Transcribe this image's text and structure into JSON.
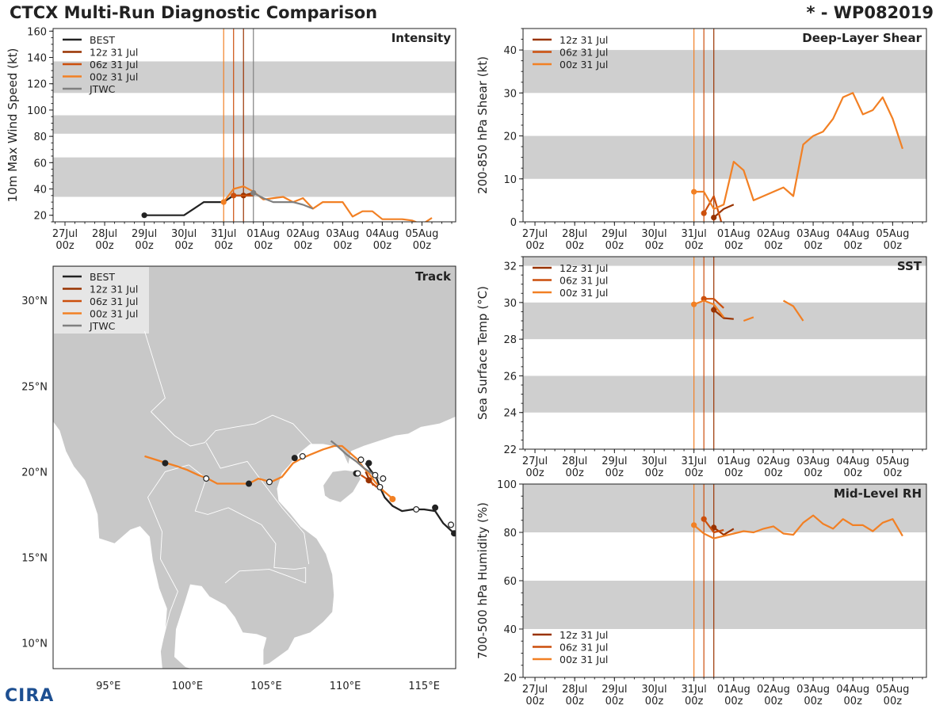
{
  "header": {
    "title_left": "CTCX Multi-Run Diagnostic Comparison",
    "title_right": "* - WP082019"
  },
  "logo": {
    "text": "CIRA"
  },
  "colors": {
    "best": "#222222",
    "run12": "#993300",
    "run06": "#cc4f0c",
    "run00": "#f28024",
    "jtwc": "#808080",
    "band": "#cfcfcf",
    "land": "#c8c8c8"
  },
  "time_ticks": [
    "27Jul\n00z",
    "28Jul\n00z",
    "29Jul\n00z",
    "30Jul\n00z",
    "31Jul\n00z",
    "01Aug\n00z",
    "02Aug\n00z",
    "03Aug\n00z",
    "04Aug\n00z",
    "05Aug\n00z"
  ],
  "chart_data": [
    {
      "id": "intensity",
      "type": "line",
      "title": "Intensity",
      "ylabel": "10m Max Wind Speed (kt)",
      "xlabel": "",
      "ylim": [
        15,
        162
      ],
      "yticks": [
        20,
        40,
        60,
        80,
        100,
        120,
        140,
        160
      ],
      "bands": [
        [
          34,
          64
        ],
        [
          82,
          96
        ],
        [
          113,
          137
        ]
      ],
      "x_unit": "days since 27Jul 00z",
      "xlim": [
        -0.3,
        9.85
      ],
      "run_lines": [
        {
          "x": 4.0,
          "series": "run00"
        },
        {
          "x": 4.25,
          "series": "run06"
        },
        {
          "x": 4.5,
          "series": "run12"
        },
        {
          "x": 4.75,
          "series": "jtwc"
        }
      ],
      "legend": [
        "BEST",
        "12z 31 Jul",
        "06z 31 Jul",
        "00z 31 Jul",
        "JTWC"
      ],
      "series": [
        {
          "name": "BEST",
          "key": "best",
          "x": [
            2.0,
            2.25,
            2.5,
            2.75,
            3.0,
            3.25,
            3.5,
            3.75,
            4.0,
            4.25,
            4.5,
            4.75
          ],
          "y": [
            20,
            20,
            20,
            20,
            20,
            25,
            30,
            30,
            30,
            35,
            35,
            35
          ]
        },
        {
          "name": "12z 31 Jul",
          "key": "run12",
          "x": [
            4.5,
            4.75
          ],
          "y": [
            35,
            37
          ]
        },
        {
          "name": "06z 31 Jul",
          "key": "run06",
          "x": [
            4.25,
            4.5,
            4.75
          ],
          "y": [
            35,
            35,
            35
          ]
        },
        {
          "name": "00z 31 Jul",
          "key": "run00",
          "x": [
            4.0,
            4.25,
            4.5,
            4.75,
            5.0,
            5.25,
            5.5,
            5.75,
            6.0,
            6.25,
            6.5,
            6.75,
            7.0,
            7.25,
            7.5,
            7.75,
            8.0,
            8.25,
            8.5,
            8.75,
            9.0,
            9.25
          ],
          "y": [
            30,
            40,
            42,
            38,
            32,
            33,
            34,
            30,
            33,
            25,
            30,
            30,
            30,
            19,
            23,
            23,
            17,
            17,
            17,
            16,
            13,
            18
          ]
        },
        {
          "name": "JTWC",
          "key": "jtwc",
          "x": [
            4.75,
            5.0,
            5.25,
            5.5,
            5.75,
            6.0,
            6.25
          ],
          "y": [
            37,
            33,
            30,
            30,
            30,
            28,
            25
          ]
        }
      ]
    },
    {
      "id": "shear",
      "type": "line",
      "title": "Deep-Layer Shear",
      "ylabel": "200-850 hPa Shear (kt)",
      "xlabel": "",
      "ylim": [
        0,
        45
      ],
      "yticks": [
        0,
        10,
        20,
        30,
        40
      ],
      "bands": [
        [
          10,
          20
        ],
        [
          30,
          40
        ]
      ],
      "xlim": [
        -0.3,
        9.85
      ],
      "run_lines": [
        {
          "x": 4.0,
          "series": "run00"
        },
        {
          "x": 4.25,
          "series": "run06"
        },
        {
          "x": 4.5,
          "series": "run12"
        }
      ],
      "legend": [
        "12z 31 Jul",
        "06z 31 Jul",
        "00z 31 Jul"
      ],
      "series": [
        {
          "name": "12z 31 Jul",
          "key": "run12",
          "x": [
            4.5,
            4.75,
            5.0
          ],
          "y": [
            1,
            3,
            4
          ]
        },
        {
          "name": "06z 31 Jul",
          "key": "run06",
          "x": [
            4.25,
            4.5,
            4.75
          ],
          "y": [
            2,
            6,
            -2
          ]
        },
        {
          "name": "00z 31 Jul",
          "key": "run00",
          "x": [
            4.0,
            4.25,
            4.5,
            4.75,
            5.0,
            5.25,
            5.5,
            6.25,
            6.5,
            6.75,
            7.0,
            7.25,
            7.5,
            7.75,
            8.0,
            8.25,
            8.5,
            8.75,
            9.0,
            9.25
          ],
          "y": [
            7,
            7,
            3,
            4,
            14,
            12,
            5,
            8,
            6,
            18,
            20,
            21,
            24,
            29,
            30,
            25,
            26,
            29,
            24,
            17
          ]
        }
      ]
    },
    {
      "id": "sst",
      "type": "line",
      "title": "SST",
      "ylabel": "Sea Surface Temp (°C)",
      "xlabel": "",
      "ylim": [
        22,
        32.5
      ],
      "yticks": [
        22,
        24,
        26,
        28,
        30,
        32
      ],
      "bands": [
        [
          24,
          26
        ],
        [
          28,
          30
        ],
        [
          32,
          33
        ]
      ],
      "xlim": [
        -0.3,
        9.85
      ],
      "run_lines": [
        {
          "x": 4.0,
          "series": "run00"
        },
        {
          "x": 4.25,
          "series": "run06"
        },
        {
          "x": 4.5,
          "series": "run12"
        }
      ],
      "legend": [
        "12z 31 Jul",
        "06z 31 Jul",
        "00z 31 Jul"
      ],
      "series": [
        {
          "name": "12z 31 Jul",
          "key": "run12",
          "x": [
            4.5,
            4.75,
            5.0
          ],
          "y": [
            29.6,
            29.15,
            29.1
          ]
        },
        {
          "name": "06z 31 Jul",
          "key": "run06",
          "x": [
            4.25,
            4.5,
            4.75
          ],
          "y": [
            30.2,
            30.2,
            29.7
          ]
        },
        {
          "name": "00z 31 Jul",
          "key": "run00",
          "x": [
            4.0,
            4.25,
            4.5,
            4.75
          ],
          "y": [
            29.9,
            30.1,
            29.9,
            29.2
          ],
          "segments": [
            {
              "x": [
                5.25,
                5.5
              ],
              "y": [
                29.0,
                29.2
              ]
            },
            {
              "x": [
                6.25,
                6.5,
                6.75
              ],
              "y": [
                30.1,
                29.8,
                29.0
              ]
            }
          ]
        }
      ]
    },
    {
      "id": "rh",
      "type": "line",
      "title": "Mid-Level RH",
      "ylabel": "700-500 hPa Humidity (%)",
      "xlabel": "",
      "ylim": [
        20,
        100
      ],
      "yticks": [
        20,
        40,
        60,
        80,
        100
      ],
      "bands": [
        [
          40,
          60
        ],
        [
          80,
          100
        ]
      ],
      "xlim": [
        -0.3,
        9.85
      ],
      "run_lines": [
        {
          "x": 4.0,
          "series": "run00"
        },
        {
          "x": 4.25,
          "series": "run06"
        },
        {
          "x": 4.5,
          "series": "run12"
        }
      ],
      "legend": [
        "12z 31 Jul",
        "06z 31 Jul",
        "00z 31 Jul"
      ],
      "series": [
        {
          "name": "12z 31 Jul",
          "key": "run12",
          "x": [
            4.5,
            4.75,
            5.0
          ],
          "y": [
            82,
            79,
            81.5
          ]
        },
        {
          "name": "06z 31 Jul",
          "key": "run06",
          "x": [
            4.25,
            4.5,
            4.75
          ],
          "y": [
            85.5,
            80,
            81
          ]
        },
        {
          "name": "00z 31 Jul",
          "key": "run00",
          "x": [
            4.0,
            4.25,
            4.5,
            4.75,
            5.0,
            5.25,
            5.5,
            5.75,
            6.0,
            6.25,
            6.5,
            6.75,
            7.0,
            7.25,
            7.5,
            7.75,
            8.0,
            8.25,
            8.5,
            8.75,
            9.0,
            9.25
          ],
          "y": [
            83,
            79.5,
            77.5,
            78.5,
            79.5,
            80.5,
            80,
            81.5,
            82.5,
            79.5,
            79,
            84,
            87,
            83.5,
            81.5,
            85.5,
            83,
            83,
            80.5,
            84,
            85.5,
            78.5
          ]
        }
      ]
    },
    {
      "id": "track",
      "type": "line",
      "title": "Track",
      "xlabel": "",
      "ylabel": "",
      "xlim": [
        91.5,
        117
      ],
      "ylim": [
        8.5,
        32
      ],
      "xticks": [
        95,
        100,
        105,
        110,
        115
      ],
      "xtick_labels": [
        "95°E",
        "100°E",
        "105°E",
        "110°E",
        "115°E"
      ],
      "yticks": [
        10,
        15,
        20,
        25,
        30
      ],
      "ytick_labels": [
        "10°N",
        "15°N",
        "20°N",
        "25°N",
        "30°N"
      ],
      "legend": [
        "BEST",
        "12z 31 Jul",
        "06z 31 Jul",
        "00z 31 Jul",
        "JTWC"
      ],
      "series": [
        {
          "name": "BEST",
          "key": "best",
          "lon": [
            117.2,
            116.9,
            116.2,
            115.7,
            115.0,
            114.3,
            113.6,
            113.0,
            112.5,
            112.2,
            112.0,
            111.6,
            111.3
          ],
          "lat": [
            16.2,
            16.4,
            17.0,
            17.7,
            17.8,
            17.8,
            17.7,
            18.0,
            18.5,
            19.1,
            19.6,
            20.1,
            20.5
          ]
        },
        {
          "name": "12z 31 Jul",
          "key": "run12",
          "lon": [
            111.3,
            111.5,
            111.8
          ],
          "lat": [
            20.0,
            19.6,
            19.2
          ]
        },
        {
          "name": "06z 31 Jul",
          "key": "run06",
          "lon": [
            111.0,
            111.5,
            112.0
          ],
          "lat": [
            19.8,
            19.5,
            19.1
          ]
        },
        {
          "name": "00z 31 Jul",
          "key": "run00",
          "lon": [
            112.9,
            112.4,
            111.9,
            111.5,
            111.1,
            110.8,
            110.3,
            109.8,
            109.3,
            108.6,
            107.8,
            107.3,
            106.7,
            106.0,
            105.3,
            104.5,
            103.9,
            103.3,
            102.6,
            101.9,
            101.3,
            100.7,
            100.0,
            99.4,
            98.7,
            97.3
          ],
          "lat": [
            18.5,
            18.9,
            19.4,
            19.9,
            20.3,
            20.7,
            21.1,
            21.5,
            21.5,
            21.3,
            21.0,
            20.8,
            20.5,
            19.7,
            19.4,
            19.6,
            19.3,
            19.3,
            19.3,
            19.3,
            19.6,
            19.8,
            20.1,
            20.3,
            20.5,
            20.9
          ]
        },
        {
          "name": "JTWC",
          "key": "jtwc",
          "lon": [
            112.1,
            111.7,
            111.2,
            110.7,
            110.1,
            109.5,
            109.1
          ],
          "lat": [
            19.6,
            19.9,
            20.2,
            20.6,
            21.0,
            21.5,
            21.8
          ]
        }
      ],
      "dots": [
        {
          "lon": 116.9,
          "lat": 16.4,
          "filled": true,
          "key": "best"
        },
        {
          "lon": 116.7,
          "lat": 16.9,
          "filled": false,
          "key": "best"
        },
        {
          "lon": 115.7,
          "lat": 17.9,
          "filled": true,
          "key": "best"
        },
        {
          "lon": 114.5,
          "lat": 17.8,
          "filled": false,
          "key": "best"
        },
        {
          "lon": 113.0,
          "lat": 18.4,
          "filled": true,
          "key": "run00"
        },
        {
          "lon": 112.4,
          "lat": 19.6,
          "filled": false,
          "key": "best"
        },
        {
          "lon": 112.2,
          "lat": 19.1,
          "filled": false,
          "key": "best"
        },
        {
          "lon": 111.5,
          "lat": 20.5,
          "filled": true,
          "key": "best"
        },
        {
          "lon": 111.0,
          "lat": 20.7,
          "filled": false,
          "key": "best"
        },
        {
          "lon": 111.9,
          "lat": 19.8,
          "filled": false,
          "key": "best"
        },
        {
          "lon": 111.5,
          "lat": 19.5,
          "filled": true,
          "key": "run12"
        },
        {
          "lon": 110.7,
          "lat": 19.9,
          "filled": true,
          "key": "best"
        },
        {
          "lon": 110.8,
          "lat": 19.9,
          "filled": false,
          "key": "best"
        },
        {
          "lon": 107.3,
          "lat": 20.9,
          "filled": false,
          "key": "best"
        },
        {
          "lon": 106.8,
          "lat": 20.8,
          "filled": true,
          "key": "best"
        },
        {
          "lon": 105.2,
          "lat": 19.4,
          "filled": false,
          "key": "best"
        },
        {
          "lon": 103.9,
          "lat": 19.3,
          "filled": true,
          "key": "best"
        },
        {
          "lon": 101.2,
          "lat": 19.6,
          "filled": false,
          "key": "best"
        },
        {
          "lon": 98.6,
          "lat": 20.5,
          "filled": true,
          "key": "best"
        }
      ]
    }
  ]
}
